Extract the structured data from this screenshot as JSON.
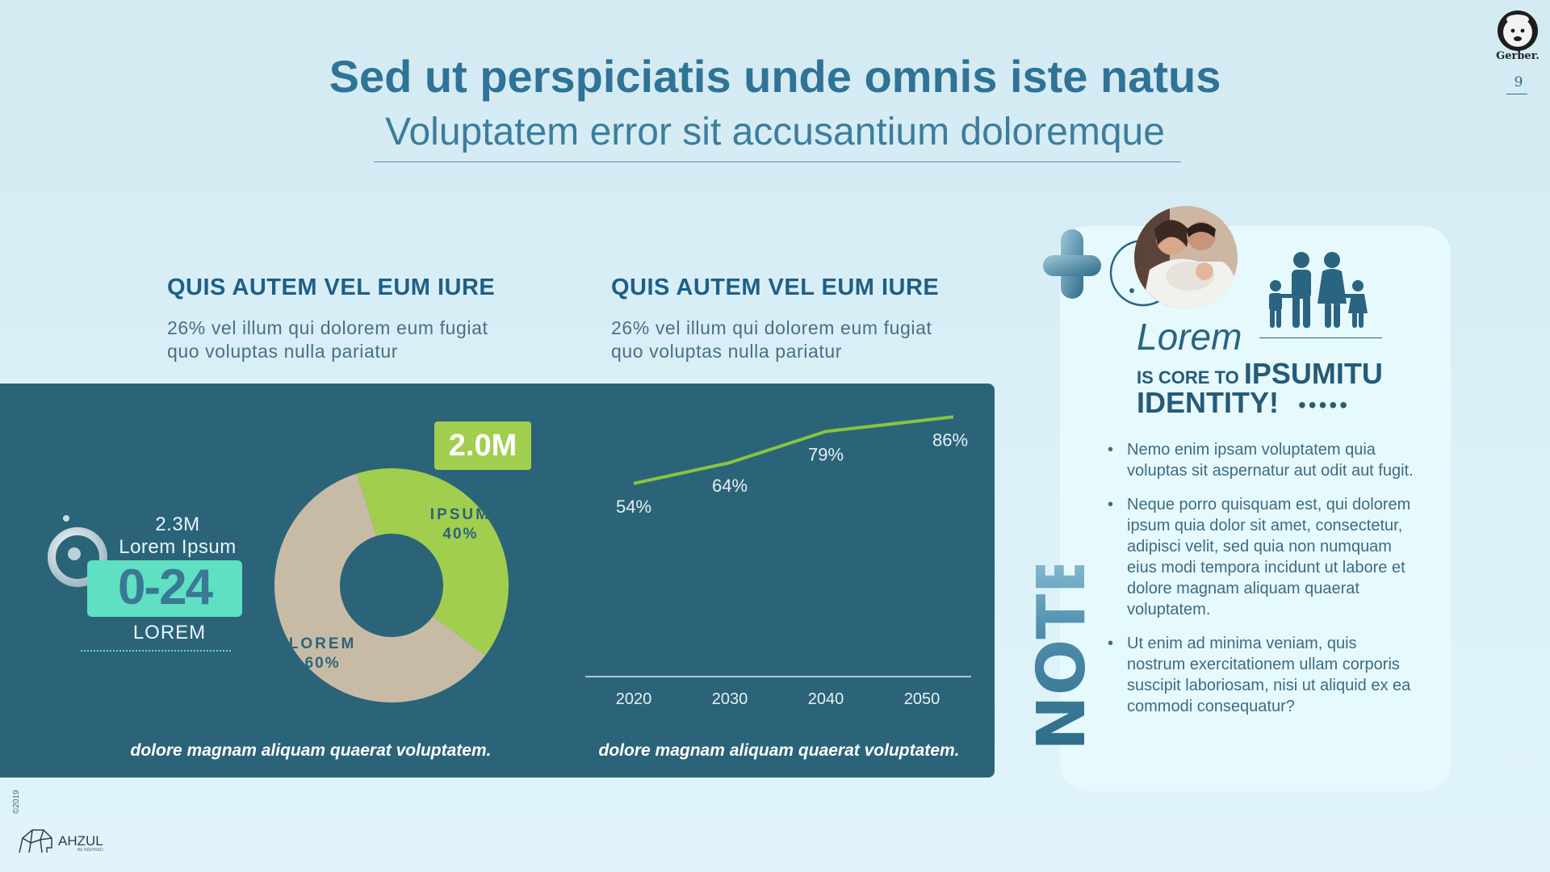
{
  "header": {
    "title": "Sed ut perspiciatis unde omnis iste natus",
    "subtitle": "Voluptatem error sit accusantium doloremque"
  },
  "brand": {
    "logo_text": "Gerber.",
    "page_number": "9"
  },
  "columns": [
    {
      "heading": "QUIS AUTEM VEL EUM IURE",
      "line1": "26% vel illum qui dolorem eum fugiat",
      "line2": "quo voluptas nulla pariatur"
    },
    {
      "heading": "QUIS AUTEM VEL EUM IURE",
      "line1": "26% vel illum qui dolorem eum fugiat",
      "line2": "quo voluptas nulla pariatur"
    }
  ],
  "stat": {
    "value": "2.3M",
    "label": "Lorem Ipsum",
    "age_range": "0-24",
    "age_label": "LOREM"
  },
  "badge": "2.0M",
  "captions": [
    "dolore magnam aliquam quaerat voluptatem.",
    "dolore magnam aliquam quaerat voluptatem."
  ],
  "chart_data": [
    {
      "type": "pie",
      "slices": [
        {
          "label": "IPSUM",
          "value": 40,
          "value_label": "40%",
          "color": "#a2ce4f"
        },
        {
          "label": "LOREM",
          "value": 60,
          "value_label": "60%",
          "color": "#c8bba5"
        }
      ]
    },
    {
      "type": "line",
      "x": [
        "2020",
        "2030",
        "2040",
        "2050"
      ],
      "values": [
        54,
        64,
        79,
        86
      ],
      "value_labels": [
        "54%",
        "64%",
        "79%",
        "86%"
      ],
      "ylim": [
        0,
        100
      ],
      "color": "#8ac43f",
      "grid": false
    }
  ],
  "note": {
    "word": "NOTE",
    "lorem": "Lorem",
    "core_prefix": "IS CORE TO",
    "core_word": "IPSUMITU",
    "identity": "IDENTITY!",
    "dots": "•••••",
    "bullets": [
      "Nemo enim ipsam voluptatem quia voluptas sit aspernatur aut odit aut fugit.",
      "Neque porro quisquam est, qui dolorem ipsum quia dolor sit amet, consectetur, adipisci velit, sed quia non numquam eius modi tempora incidunt ut labore et dolore magnam aliquam quaerat voluptatem.",
      "Ut enim ad minima veniam, quis nostrum exercitationem ullam corporis suscipit laboriosam, nisi ut aliquid ex ea commodi consequatur?"
    ]
  },
  "footer": {
    "copyright": "©2019",
    "brand": "AHZUL",
    "tagline": "BE INSPIRED"
  },
  "icons": {
    "family": "family-icon",
    "plus": "plus-3d-icon",
    "ring": "ring-icon",
    "photo": "family-photo",
    "logo": "gerber-baby-logo",
    "elephant": "elephant-logo"
  },
  "colors": {
    "accent": "#2f7395",
    "panel": "#2b6479",
    "green": "#a2ce4f",
    "mint": "#5fe0c2",
    "beige": "#c8bba5"
  }
}
